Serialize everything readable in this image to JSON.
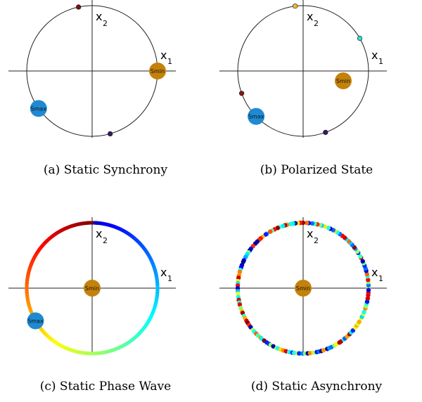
{
  "panels": [
    {
      "caption": "(a) Static Synchrony",
      "x_label": "x",
      "x_sub": "1",
      "y_label": "x",
      "y_sub": "2",
      "smin_label": "Smin",
      "smax_label": "Smax",
      "smin_angle_deg": 0,
      "smin_on_circle": true,
      "smax_angle_deg": 215,
      "smax_color": "#1f8ad2",
      "smin_color": "#c4820a",
      "points": [
        {
          "angle_deg": 102,
          "color": "#7a0f0f"
        },
        {
          "angle_deg": 286,
          "color": "#3a1a5c"
        }
      ],
      "ring": false
    },
    {
      "caption": "(b) Polarized State",
      "x_label": "x",
      "x_sub": "1",
      "y_label": "x",
      "y_sub": "2",
      "smin_label": "Smin",
      "smax_label": "Smax",
      "smin_on_circle": false,
      "smax_angle_deg": 224,
      "smax_color": "#1f8ad2",
      "smin_color": "#c4820a",
      "points": [
        {
          "angle_deg": 97,
          "color": "#f2b73a"
        },
        {
          "angle_deg": 30,
          "color": "#2de0d0"
        },
        {
          "angle_deg": 200,
          "color": "#8c1515"
        },
        {
          "angle_deg": 290,
          "color": "#3a1a5c"
        }
      ],
      "ring": false
    },
    {
      "caption": "(c) Static Phase Wave",
      "x_label": "x",
      "x_sub": "1",
      "y_label": "x",
      "y_sub": "2",
      "smin_label": "Smin",
      "smax_label": "Smax",
      "smin_on_circle": false,
      "smax_angle_deg": 210,
      "smax_color": "#1f8ad2",
      "smin_color": "#c4820a",
      "points": [],
      "ring": "gradient"
    },
    {
      "caption": "(d) Static Asynchrony",
      "x_label": "x",
      "x_sub": "1",
      "y_label": "x",
      "y_sub": "2",
      "smin_label": "Smin",
      "smin_on_circle": false,
      "smin_color": "#c4820a",
      "points": [],
      "ring": "random"
    }
  ]
}
